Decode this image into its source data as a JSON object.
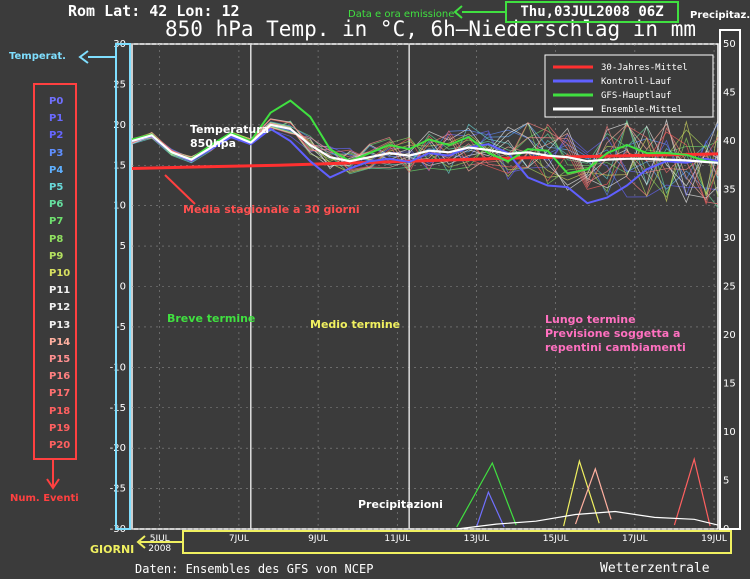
{
  "header": {
    "location": "Rom   Lat: 42  Lon: 12",
    "title": "850 hPa Temp. in °C, 6h–Niederschlag in mm",
    "emission_label": "Data e ora emissione",
    "emission_value": "Thu,03JUL2008  06Z",
    "left_axis_tag": "Temperat.",
    "right_axis_tag": "Precipitaz."
  },
  "footer": {
    "source": "Daten: Ensembles des GFS von NCEP",
    "brand": "Wetterzentrale",
    "days_tag": "GIORNI"
  },
  "runs": {
    "labels": [
      "P0",
      "P1",
      "P2",
      "P3",
      "P4",
      "P5",
      "P6",
      "P7",
      "P8",
      "P9",
      "P10",
      "P11",
      "P12",
      "P13",
      "P14",
      "P15",
      "P16",
      "P17",
      "P18",
      "P19",
      "P20"
    ],
    "colors": [
      "#7070ff",
      "#6a6aff",
      "#6666ff",
      "#5f8fff",
      "#5fb0ff",
      "#68d8d8",
      "#66e0a0",
      "#6ee06e",
      "#90e060",
      "#b4e060",
      "#d8e060",
      "#f0f0f0",
      "#f0f0f0",
      "#f0f0f0",
      "#ffb0a0",
      "#ff9090",
      "#ff8080",
      "#ff7070",
      "#ff6060",
      "#ff6060",
      "#ff6060"
    ],
    "caption": "Num. Eventi"
  },
  "annotations": {
    "temp_label_1": "Temperatura",
    "temp_label_2": "850hpa",
    "seasonal": "Media stagionale a 30 giorni",
    "short": "Breve termine",
    "medium": "Medio termine",
    "long_1": "Lungo termine",
    "long_2": "Previsione soggetta a",
    "long_3": "repentini cambiamenti",
    "precip": "Precipitazioni"
  },
  "chart_data": {
    "type": "line",
    "title": "850 hPa Temp. in °C, 6h–Niederschlag in mm",
    "xlabel": "",
    "ylabel": "",
    "x_ticks": [
      "5JUL\n2008",
      "7JUL",
      "9JUL",
      "11JUL",
      "13JUL",
      "15JUL",
      "17JUL",
      "19JUL"
    ],
    "xlim_days": [
      4.3,
      19.1
    ],
    "ylim": [
      -30,
      30
    ],
    "y_ticks": [
      30,
      25,
      20,
      15,
      10,
      5,
      0,
      -5,
      -10,
      -15,
      -20,
      -25,
      -30
    ],
    "y2lim": [
      0,
      50
    ],
    "y2_ticks": [
      50,
      45,
      40,
      35,
      30,
      25,
      20,
      15,
      10,
      5,
      0
    ],
    "grid": "dashed",
    "legend_position": "top-right",
    "legend": [
      {
        "name": "30-Jahres-Mittel",
        "color": "#ff3030"
      },
      {
        "name": "Kontroll-Lauf",
        "color": "#6060ff"
      },
      {
        "name": "GFS-Hauptlauf",
        "color": "#40e040"
      },
      {
        "name": "Ensemble-Mittel",
        "color": "#ffffff"
      }
    ],
    "series": [
      {
        "name": "30-Jahres-Mittel",
        "x": [
          4.3,
          6,
          8,
          10,
          12,
          14,
          16,
          18,
          19.1
        ],
        "y": [
          14.6,
          14.8,
          15.0,
          15.3,
          15.6,
          15.9,
          16.1,
          16.3,
          16.4
        ]
      },
      {
        "name": "Kontroll-Lauf",
        "x": [
          4.3,
          4.8,
          5.3,
          5.8,
          6.3,
          6.8,
          7.3,
          7.8,
          8.3,
          8.8,
          9.3,
          9.8,
          10.3,
          10.8,
          11.3,
          11.8,
          12.3,
          12.8,
          13.3,
          13.8,
          14.3,
          14.8,
          15.3,
          15.8,
          16.3,
          16.8,
          17.3,
          17.8,
          18.3,
          18.8,
          19.1
        ],
        "y": [
          18,
          18.6,
          16.5,
          15.6,
          17,
          18.5,
          17.6,
          19.5,
          18,
          15.5,
          13.5,
          14.6,
          15.5,
          15.8,
          15.4,
          16.5,
          16.2,
          17.2,
          17.6,
          16.5,
          13.5,
          12.5,
          12.3,
          10.3,
          11,
          12.5,
          14.5,
          15.5,
          15.3,
          15.8,
          15.5
        ]
      },
      {
        "name": "GFS-Hauptlauf",
        "x": [
          4.3,
          4.8,
          5.3,
          5.8,
          6.3,
          6.8,
          7.3,
          7.8,
          8.3,
          8.8,
          9.3,
          9.8,
          10.3,
          10.8,
          11.3,
          11.8,
          12.3,
          12.8,
          13.3,
          13.8,
          14.3,
          14.8,
          15.3,
          15.8,
          16.3,
          16.8,
          17.3,
          17.8,
          18.3,
          18.8,
          19.1
        ],
        "y": [
          18.2,
          18.8,
          16.5,
          15.8,
          17.5,
          19,
          18,
          21.5,
          23,
          21,
          17,
          15.5,
          16.5,
          17.5,
          17,
          18.2,
          17.5,
          18.5,
          16.5,
          15.5,
          17,
          16.8,
          14,
          14.5,
          16.5,
          17.5,
          16.5,
          16.5,
          16.3,
          15.5,
          15.3
        ]
      },
      {
        "name": "Ensemble-Mittel",
        "x": [
          4.3,
          4.8,
          5.3,
          5.8,
          6.3,
          6.8,
          7.3,
          7.8,
          8.3,
          8.8,
          9.3,
          9.8,
          10.3,
          10.8,
          11.3,
          11.8,
          12.3,
          12.8,
          13.3,
          13.8,
          14.3,
          14.8,
          15.3,
          15.8,
          16.3,
          16.8,
          17.3,
          17.8,
          18.3,
          18.8,
          19.1
        ],
        "y": [
          18,
          18.7,
          16.6,
          15.7,
          17.2,
          18.8,
          17.8,
          20,
          19.5,
          17.5,
          16,
          15.5,
          16,
          16.5,
          16.2,
          16.8,
          16.6,
          17.2,
          16.9,
          16.4,
          16.6,
          16.2,
          16,
          15.5,
          15.7,
          15.8,
          15.8,
          15.7,
          15.6,
          15.4,
          15.3
        ]
      }
    ],
    "precipitation": [
      {
        "name": "GFS-Hauptlauf",
        "x": [
          12.5,
          13.4,
          14.0
        ],
        "y": [
          0.2,
          6.8,
          0.4
        ]
      },
      {
        "name": "precip-member-1",
        "x": [
          15.2,
          15.6,
          16.1
        ],
        "y": [
          0.3,
          7.0,
          0.6
        ]
      },
      {
        "name": "precip-member-2",
        "x": [
          15.5,
          16.0,
          16.4
        ],
        "y": [
          0.5,
          6.2,
          1.0
        ]
      },
      {
        "name": "precip-member-3",
        "x": [
          18.0,
          18.5,
          18.9
        ],
        "y": [
          0.4,
          7.2,
          0.3
        ]
      },
      {
        "name": "precip-member-4",
        "x": [
          13.0,
          13.3,
          13.7
        ],
        "y": [
          0.2,
          3.8,
          0.2
        ]
      },
      {
        "name": "Ensemble-Mittel",
        "x": [
          12.5,
          13.5,
          14.5,
          15.5,
          16.5,
          17.5,
          18.5,
          19.1
        ],
        "y": [
          0,
          0.5,
          0.8,
          1.5,
          1.8,
          1.2,
          1.0,
          0.4
        ]
      }
    ]
  },
  "colors": {
    "background": "#3b3b3b",
    "cyan_tag": "#7fdfff",
    "green_tag": "#40e040",
    "yellow_tag": "#f0f060",
    "red_tag": "#ff4040",
    "pink_note": "#ff70c0"
  }
}
